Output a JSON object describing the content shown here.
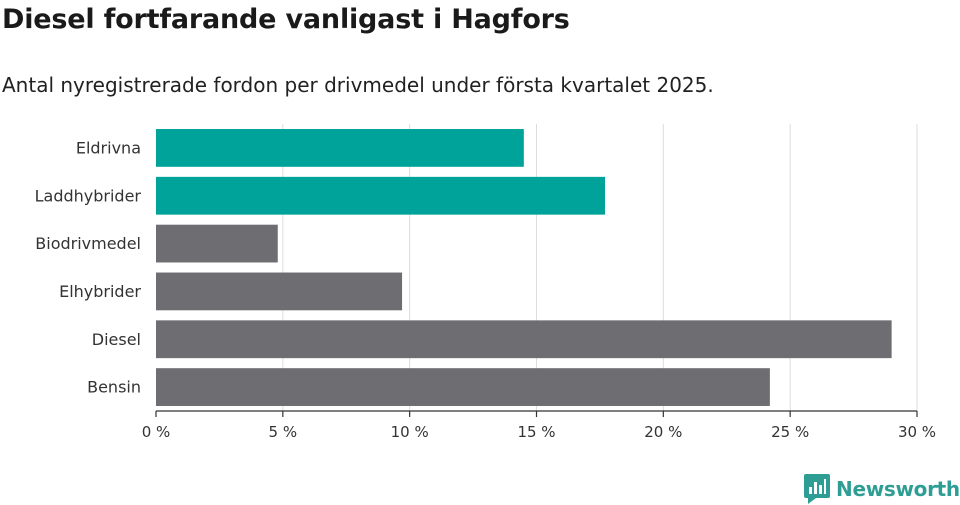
{
  "header": {
    "title": "Diesel fortfarande vanligast i Hagfors",
    "subtitle": "Antal nyregistrerade fordon per drivmedel under första kvartalet 2025."
  },
  "brand": {
    "name": "Newsworthy",
    "icon": "newsworthy-logo-icon",
    "color": "#2e9e95"
  },
  "chart_data": {
    "type": "bar",
    "orientation": "horizontal",
    "title": "Diesel fortfarande vanligast i Hagfors",
    "subtitle": "Antal nyregistrerade fordon per drivmedel under första kvartalet 2025.",
    "categories": [
      "Eldrivna",
      "Laddhybrider",
      "Biodrivmedel",
      "Elhybrider",
      "Diesel",
      "Bensin"
    ],
    "values": [
      14.5,
      17.7,
      4.8,
      9.7,
      29.0,
      24.2
    ],
    "colors": [
      "#00a39a",
      "#00a39a",
      "#6e6d72",
      "#6e6d72",
      "#6e6d72",
      "#6e6d72"
    ],
    "xlim": [
      0,
      30
    ],
    "xticks": [
      0,
      5,
      10,
      15,
      20,
      25,
      30
    ],
    "xtick_labels": [
      "0 %",
      "5 %",
      "10 %",
      "15 %",
      "20 %",
      "25 %",
      "30 %"
    ],
    "grid": true
  }
}
